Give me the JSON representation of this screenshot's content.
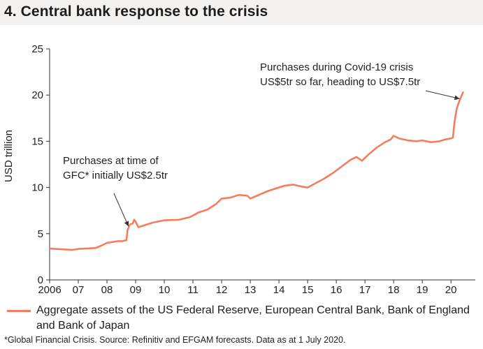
{
  "title": "4. Central bank response to the crisis",
  "chart_data": {
    "type": "line",
    "ylabel": "USD trillion",
    "xlabel": "",
    "ylim": [
      0,
      25
    ],
    "yticks": [
      0,
      5,
      10,
      15,
      20,
      25
    ],
    "xlim": [
      2006,
      2020.85
    ],
    "xticks": [
      {
        "value": 2006,
        "label": "2006"
      },
      {
        "value": 2007,
        "label": "07"
      },
      {
        "value": 2008,
        "label": "08"
      },
      {
        "value": 2009,
        "label": "09"
      },
      {
        "value": 2010,
        "label": "10"
      },
      {
        "value": 2011,
        "label": "11"
      },
      {
        "value": 2012,
        "label": "12"
      },
      {
        "value": 2013,
        "label": "13"
      },
      {
        "value": 2014,
        "label": "14"
      },
      {
        "value": 2015,
        "label": "15"
      },
      {
        "value": 2016,
        "label": "16"
      },
      {
        "value": 2017,
        "label": "17"
      },
      {
        "value": 2018,
        "label": "18"
      },
      {
        "value": 2019,
        "label": "19"
      },
      {
        "value": 2020,
        "label": "20"
      }
    ],
    "grid": false,
    "series": [
      {
        "name": "Aggregate assets of the US Federal Reserve, European Central Bank, Bank of England and Bank of Japan",
        "color": "#f37e5f",
        "points": [
          [
            2006.0,
            3.4
          ],
          [
            2006.2,
            3.35
          ],
          [
            2006.5,
            3.3
          ],
          [
            2006.8,
            3.25
          ],
          [
            2007.0,
            3.35
          ],
          [
            2007.3,
            3.4
          ],
          [
            2007.6,
            3.45
          ],
          [
            2007.8,
            3.7
          ],
          [
            2008.0,
            4.0
          ],
          [
            2008.2,
            4.1
          ],
          [
            2008.4,
            4.2
          ],
          [
            2008.55,
            4.2
          ],
          [
            2008.68,
            4.3
          ],
          [
            2008.72,
            5.4
          ],
          [
            2008.8,
            6.0
          ],
          [
            2008.9,
            6.1
          ],
          [
            2008.95,
            6.5
          ],
          [
            2009.0,
            6.3
          ],
          [
            2009.1,
            5.7
          ],
          [
            2009.3,
            5.9
          ],
          [
            2009.6,
            6.2
          ],
          [
            2010.0,
            6.45
          ],
          [
            2010.5,
            6.5
          ],
          [
            2010.9,
            6.8
          ],
          [
            2011.2,
            7.3
          ],
          [
            2011.5,
            7.6
          ],
          [
            2011.8,
            8.2
          ],
          [
            2012.0,
            8.8
          ],
          [
            2012.3,
            8.9
          ],
          [
            2012.6,
            9.2
          ],
          [
            2012.9,
            9.1
          ],
          [
            2013.0,
            8.8
          ],
          [
            2013.3,
            9.2
          ],
          [
            2013.6,
            9.6
          ],
          [
            2013.9,
            9.9
          ],
          [
            2014.2,
            10.2
          ],
          [
            2014.5,
            10.3
          ],
          [
            2014.8,
            10.1
          ],
          [
            2015.0,
            10.0
          ],
          [
            2015.3,
            10.5
          ],
          [
            2015.6,
            11.0
          ],
          [
            2015.9,
            11.6
          ],
          [
            2016.2,
            12.3
          ],
          [
            2016.5,
            13.0
          ],
          [
            2016.7,
            13.3
          ],
          [
            2016.9,
            12.9
          ],
          [
            2017.1,
            13.5
          ],
          [
            2017.4,
            14.3
          ],
          [
            2017.7,
            14.9
          ],
          [
            2017.9,
            15.2
          ],
          [
            2018.0,
            15.6
          ],
          [
            2018.2,
            15.3
          ],
          [
            2018.5,
            15.1
          ],
          [
            2018.8,
            15.0
          ],
          [
            2019.0,
            15.1
          ],
          [
            2019.3,
            14.9
          ],
          [
            2019.6,
            15.0
          ],
          [
            2019.8,
            15.2
          ],
          [
            2020.0,
            15.3
          ],
          [
            2020.07,
            15.4
          ],
          [
            2020.12,
            17.0
          ],
          [
            2020.2,
            18.5
          ],
          [
            2020.3,
            19.4
          ],
          [
            2020.42,
            20.3
          ]
        ]
      }
    ],
    "annotations": [
      {
        "lines": [
          "Purchases at time of",
          "GFC* initially US$2.5tr"
        ],
        "target": [
          2008.75,
          5.8
        ]
      },
      {
        "lines": [
          "Purchases during Covid-19 crisis",
          "US$5tr so far, heading to US$7.5tr"
        ],
        "target": [
          2020.3,
          19.6
        ]
      }
    ]
  },
  "legend": {
    "label": "Aggregate assets of the US Federal Reserve, European Central Bank, Bank of England and Bank of Japan"
  },
  "footnote": "*Global Financial Crisis. Source: Refinitiv and EFGAM forecasts. Data as at 1 July 2020."
}
